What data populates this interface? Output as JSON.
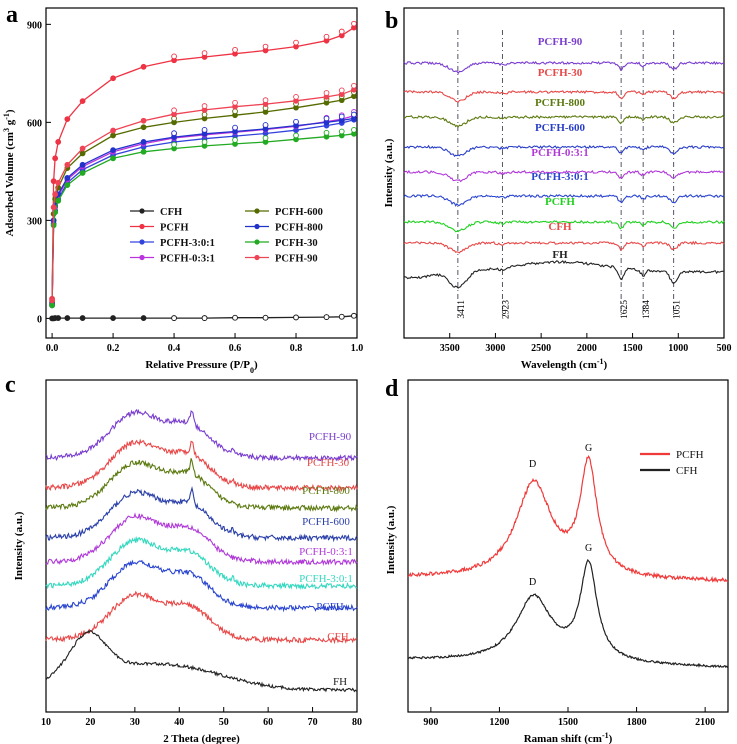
{
  "chart_data": [
    {
      "panel": "a",
      "type": "line",
      "title": "",
      "xlabel": "Relative Pressure (P/P",
      "xlabel_sub": "0",
      "ylabel": "Adsorbed Volume (cm",
      "ylabel_sup": "3",
      "ylabel_tail": " g",
      "ylabel_sup2": "-1",
      "xlim": [
        -0.02,
        1.0
      ],
      "ylim": [
        -60,
        950
      ],
      "xticks": [
        0.0,
        0.2,
        0.4,
        0.6,
        0.8,
        1.0
      ],
      "xticklabels": [
        "0.0",
        "0.2",
        "0.4",
        "0.6",
        "0.8",
        "1.0"
      ],
      "yticks": [
        0,
        300,
        600,
        900
      ],
      "yticklabels": [
        "0",
        "300",
        "600",
        "900"
      ],
      "legend": [
        {
          "name": "CFH",
          "color": "#222222"
        },
        {
          "name": "PCFH-600",
          "color": "#556b00"
        },
        {
          "name": "PCFH",
          "color": "#ee3344"
        },
        {
          "name": "PCFH-800",
          "color": "#2233cc"
        },
        {
          "name": "PCFH-3:0:1",
          "color": "#3344dd"
        },
        {
          "name": "PCFH-30",
          "color": "#22aa22"
        },
        {
          "name": "PCFH-0:3:1",
          "color": "#bb33dd"
        },
        {
          "name": "PCFH-90",
          "color": "#ee4455"
        }
      ],
      "x": [
        0.0,
        0.005,
        0.01,
        0.02,
        0.05,
        0.1,
        0.2,
        0.3,
        0.4,
        0.5,
        0.6,
        0.7,
        0.8,
        0.9,
        0.95,
        0.99
      ],
      "series": [
        {
          "name": "CFH",
          "color": "#222222",
          "values": [
            0,
            0,
            1,
            1,
            1,
            1,
            1,
            1,
            1,
            1,
            2,
            2,
            3,
            4,
            5,
            8
          ]
        },
        {
          "name": "PCFH",
          "color": "#ee3344",
          "values": [
            60,
            420,
            490,
            540,
            610,
            665,
            735,
            770,
            790,
            800,
            810,
            820,
            832,
            850,
            866,
            890
          ]
        },
        {
          "name": "PCFH-3:0:1",
          "color": "#3344dd",
          "values": [
            40,
            290,
            330,
            365,
            415,
            455,
            500,
            525,
            540,
            550,
            558,
            566,
            576,
            590,
            598,
            608
          ]
        },
        {
          "name": "PCFH-0:3:1",
          "color": "#bb33dd",
          "values": [
            40,
            300,
            340,
            375,
            425,
            465,
            510,
            535,
            552,
            562,
            570,
            578,
            588,
            602,
            610,
            620
          ]
        },
        {
          "name": "PCFH-600",
          "color": "#556b00",
          "values": [
            50,
            320,
            365,
            400,
            460,
            505,
            560,
            585,
            600,
            612,
            622,
            632,
            645,
            660,
            668,
            680
          ]
        },
        {
          "name": "PCFH-800",
          "color": "#2233cc",
          "values": [
            45,
            300,
            345,
            380,
            430,
            470,
            515,
            540,
            555,
            565,
            572,
            580,
            590,
            600,
            606,
            612
          ]
        },
        {
          "name": "PCFH-30",
          "color": "#22aa22",
          "values": [
            40,
            285,
            325,
            360,
            408,
            445,
            490,
            510,
            520,
            528,
            534,
            540,
            548,
            556,
            560,
            565
          ]
        },
        {
          "name": "PCFH-90",
          "color": "#ee4455",
          "values": [
            55,
            340,
            380,
            415,
            470,
            520,
            575,
            605,
            625,
            638,
            648,
            656,
            666,
            678,
            686,
            700
          ]
        }
      ]
    },
    {
      "panel": "b",
      "type": "line",
      "xlabel": "Wavelength (cm",
      "xlabel_sup": "-1",
      "xlabel_tail": ")",
      "ylabel": "Intensity (a.u.)",
      "xlim": [
        4000,
        500
      ],
      "xticks": [
        3500,
        3000,
        2500,
        2000,
        1500,
        1000,
        500
      ],
      "xticklabels": [
        "3500",
        "3000",
        "2500",
        "2000",
        "1500",
        "1000",
        "500"
      ],
      "reference_lines": [
        3411,
        2923,
        1625,
        1384,
        1051
      ],
      "reference_labels": [
        "3411",
        "2923",
        "1625",
        "1384",
        "1051"
      ],
      "series": [
        {
          "name": "PCFH-90",
          "color": "#7a3ecf",
          "offset": 9
        },
        {
          "name": "PCFH-30",
          "color": "#e84848",
          "offset": 8
        },
        {
          "name": "PCFH-800",
          "color": "#5c7a10",
          "offset": 7
        },
        {
          "name": "PCFH-600",
          "color": "#2a3fc8",
          "offset": 6
        },
        {
          "name": "PCFH-0:3:1",
          "color": "#b03ad8",
          "offset": 5
        },
        {
          "name": "PCFH-3:0:1",
          "color": "#2a45cf",
          "offset": 4
        },
        {
          "name": "PCFH",
          "color": "#22d022",
          "offset": 3
        },
        {
          "name": "CFH",
          "color": "#e84848",
          "offset": 2
        },
        {
          "name": "FH",
          "color": "#222222",
          "offset": 1
        }
      ]
    },
    {
      "panel": "c",
      "type": "line",
      "xlabel": "2 Theta (degree)",
      "ylabel": "Intensity (a.u.)",
      "xlim": [
        10,
        80
      ],
      "xticks": [
        10,
        20,
        30,
        40,
        50,
        60,
        70,
        80
      ],
      "xticklabels": [
        "10",
        "20",
        "30",
        "40",
        "50",
        "60",
        "70",
        "80"
      ],
      "series": [
        {
          "name": "PCFH-90",
          "color": "#7a3ecf"
        },
        {
          "name": "PCFH-30",
          "color": "#e84848"
        },
        {
          "name": "PCFH-800",
          "color": "#5c7a10"
        },
        {
          "name": "PCFH-600",
          "color": "#2a3fa8"
        },
        {
          "name": "PCFH-0:3:1",
          "color": "#b03ad8"
        },
        {
          "name": "PCFH-3:0:1",
          "color": "#35d8c0"
        },
        {
          "name": "PCFH",
          "color": "#2a45cf"
        },
        {
          "name": "CFH",
          "color": "#e84848"
        },
        {
          "name": "FH",
          "color": "#222222"
        }
      ]
    },
    {
      "panel": "d",
      "type": "line",
      "xlabel": "Raman shift (cm",
      "xlabel_sup": "-1",
      "xlabel_tail": ")",
      "ylabel": "Intensity (a.u.)",
      "xlim": [
        800,
        2200
      ],
      "xticks": [
        900,
        1200,
        1500,
        1800,
        2100
      ],
      "xticklabels": [
        "900",
        "1200",
        "1500",
        "1800",
        "2100"
      ],
      "legend": [
        {
          "name": "PCFH",
          "color": "#f03a3a"
        },
        {
          "name": "CFH",
          "color": "#222222"
        }
      ],
      "peak_labels": [
        "D",
        "G"
      ],
      "series": [
        {
          "name": "PCFH",
          "color": "#f03a3a"
        },
        {
          "name": "CFH",
          "color": "#222222"
        }
      ]
    }
  ],
  "panel_letters": [
    "a",
    "b",
    "c",
    "d"
  ]
}
